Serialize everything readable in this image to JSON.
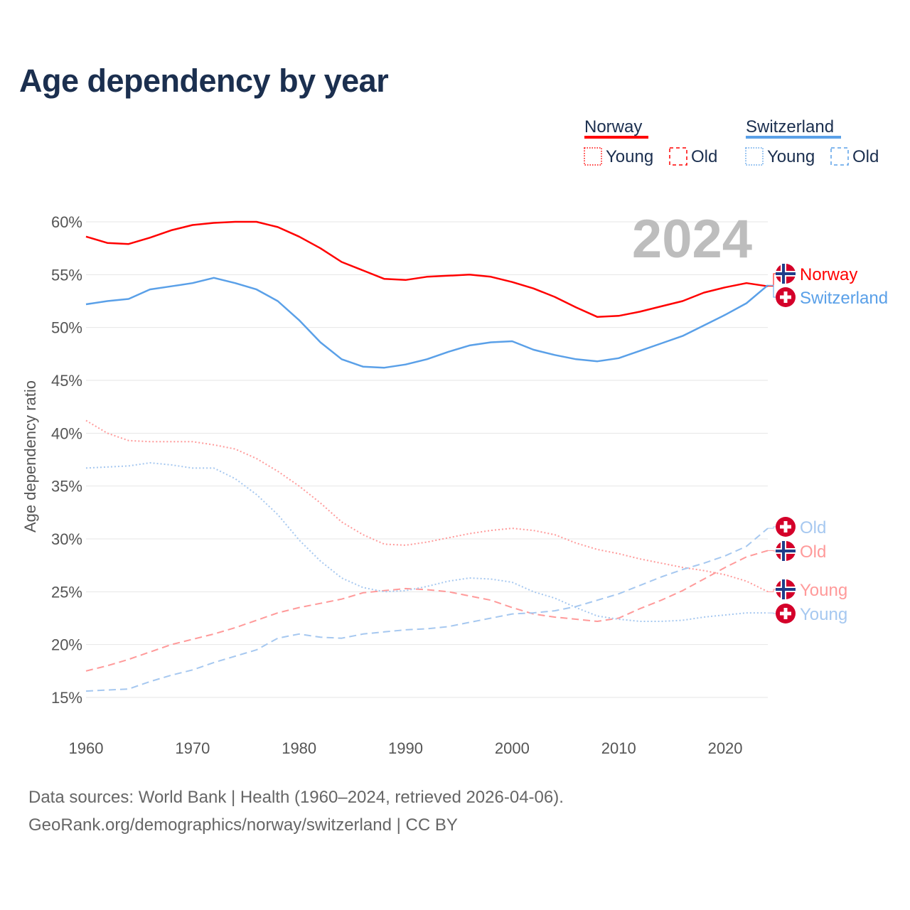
{
  "title": "Age dependency by year",
  "year_overlay": "2024",
  "legend": {
    "groups": [
      {
        "name": "Norway",
        "young": "Young",
        "old": "Old",
        "color": "#ff0000",
        "light": "#ff9a9a"
      },
      {
        "name": "Switzerland",
        "young": "Young",
        "old": "Old",
        "color": "#5aa0e8",
        "light": "#a6c8f0"
      }
    ]
  },
  "end_labels": {
    "norway_total": "Norway",
    "switzerland_total": "Switzerland",
    "switzerland_old": "Old",
    "norway_old": "Old",
    "norway_young": "Young",
    "switzerland_young": "Young"
  },
  "footer": {
    "line1": "Data sources: World Bank | Health (1960–2024, retrieved 2026-04-06).",
    "line2": "GeoRank.org/demographics/norway/switzerland | CC BY"
  },
  "chart_data": {
    "type": "line",
    "title": "Age dependency by year",
    "xlabel": "",
    "ylabel": "Age dependency ratio",
    "xlim": [
      1960,
      2024
    ],
    "ylim": [
      15,
      60
    ],
    "x_ticks": [
      "1960",
      "1970",
      "1980",
      "1990",
      "2000",
      "2010",
      "2020"
    ],
    "y_ticks": [
      "15%",
      "20%",
      "25%",
      "30%",
      "35%",
      "40%",
      "45%",
      "50%",
      "55%",
      "60%"
    ],
    "grid": true,
    "legend_position": "top-right",
    "x": [
      1960,
      1962,
      1964,
      1966,
      1968,
      1970,
      1972,
      1974,
      1976,
      1978,
      1980,
      1982,
      1984,
      1986,
      1988,
      1990,
      1992,
      1994,
      1996,
      1998,
      2000,
      2002,
      2004,
      2006,
      2008,
      2010,
      2012,
      2014,
      2016,
      2018,
      2020,
      2022,
      2024
    ],
    "series": [
      {
        "name": "Norway",
        "key": "norway_total",
        "color": "#ff0000",
        "style": "solid",
        "values": [
          58.6,
          58.0,
          57.9,
          58.5,
          59.2,
          59.7,
          59.9,
          60.0,
          60.0,
          59.5,
          58.6,
          57.5,
          56.2,
          55.4,
          54.6,
          54.5,
          54.8,
          54.9,
          55.0,
          54.8,
          54.3,
          53.7,
          52.9,
          51.9,
          51.0,
          51.1,
          51.5,
          52.0,
          52.5,
          53.3,
          53.8,
          54.2,
          53.9
        ]
      },
      {
        "name": "Switzerland",
        "key": "switzerland_total",
        "color": "#5aa0e8",
        "style": "solid",
        "values": [
          52.2,
          52.5,
          52.7,
          53.6,
          53.9,
          54.2,
          54.7,
          54.2,
          53.6,
          52.5,
          50.7,
          48.6,
          47.0,
          46.3,
          46.2,
          46.5,
          47.0,
          47.7,
          48.3,
          48.6,
          48.7,
          47.9,
          47.4,
          47.0,
          46.8,
          47.1,
          47.8,
          48.5,
          49.2,
          50.2,
          51.2,
          52.3,
          54.0
        ]
      },
      {
        "name": "Norway Young",
        "key": "norway_young",
        "color": "#ff9a9a",
        "style": "dotted",
        "values": [
          41.2,
          40.0,
          39.3,
          39.2,
          39.2,
          39.2,
          38.9,
          38.5,
          37.6,
          36.4,
          35.0,
          33.4,
          31.6,
          30.4,
          29.5,
          29.4,
          29.7,
          30.1,
          30.5,
          30.8,
          31.0,
          30.8,
          30.4,
          29.6,
          29.0,
          28.6,
          28.1,
          27.7,
          27.3,
          27.0,
          26.6,
          26.0,
          25.0
        ]
      },
      {
        "name": "Norway Old",
        "key": "norway_old",
        "color": "#ff9a9a",
        "style": "dashed",
        "values": [
          17.5,
          18.0,
          18.6,
          19.3,
          20.0,
          20.5,
          21.0,
          21.6,
          22.3,
          23.0,
          23.5,
          23.9,
          24.3,
          24.9,
          25.1,
          25.3,
          25.2,
          25.0,
          24.6,
          24.2,
          23.5,
          22.9,
          22.6,
          22.4,
          22.2,
          22.5,
          23.4,
          24.2,
          25.1,
          26.2,
          27.3,
          28.3,
          28.9
        ]
      },
      {
        "name": "Switzerland Young",
        "key": "switzerland_young",
        "color": "#a6c8f0",
        "style": "dotted",
        "values": [
          36.7,
          36.8,
          36.9,
          37.2,
          37.0,
          36.7,
          36.7,
          35.7,
          34.2,
          32.3,
          29.9,
          27.9,
          26.3,
          25.4,
          25.0,
          25.1,
          25.5,
          26.0,
          26.3,
          26.2,
          25.9,
          25.0,
          24.4,
          23.5,
          22.7,
          22.4,
          22.2,
          22.2,
          22.3,
          22.6,
          22.8,
          23.0,
          23.0
        ]
      },
      {
        "name": "Switzerland Old",
        "key": "switzerland_old",
        "color": "#a6c8f0",
        "style": "dashed",
        "values": [
          15.6,
          15.7,
          15.8,
          16.5,
          17.1,
          17.6,
          18.3,
          18.9,
          19.5,
          20.6,
          21.0,
          20.7,
          20.6,
          21.0,
          21.2,
          21.4,
          21.5,
          21.7,
          22.1,
          22.5,
          22.9,
          23.0,
          23.2,
          23.6,
          24.2,
          24.8,
          25.6,
          26.4,
          27.1,
          27.7,
          28.4,
          29.3,
          31.0
        ]
      }
    ]
  }
}
